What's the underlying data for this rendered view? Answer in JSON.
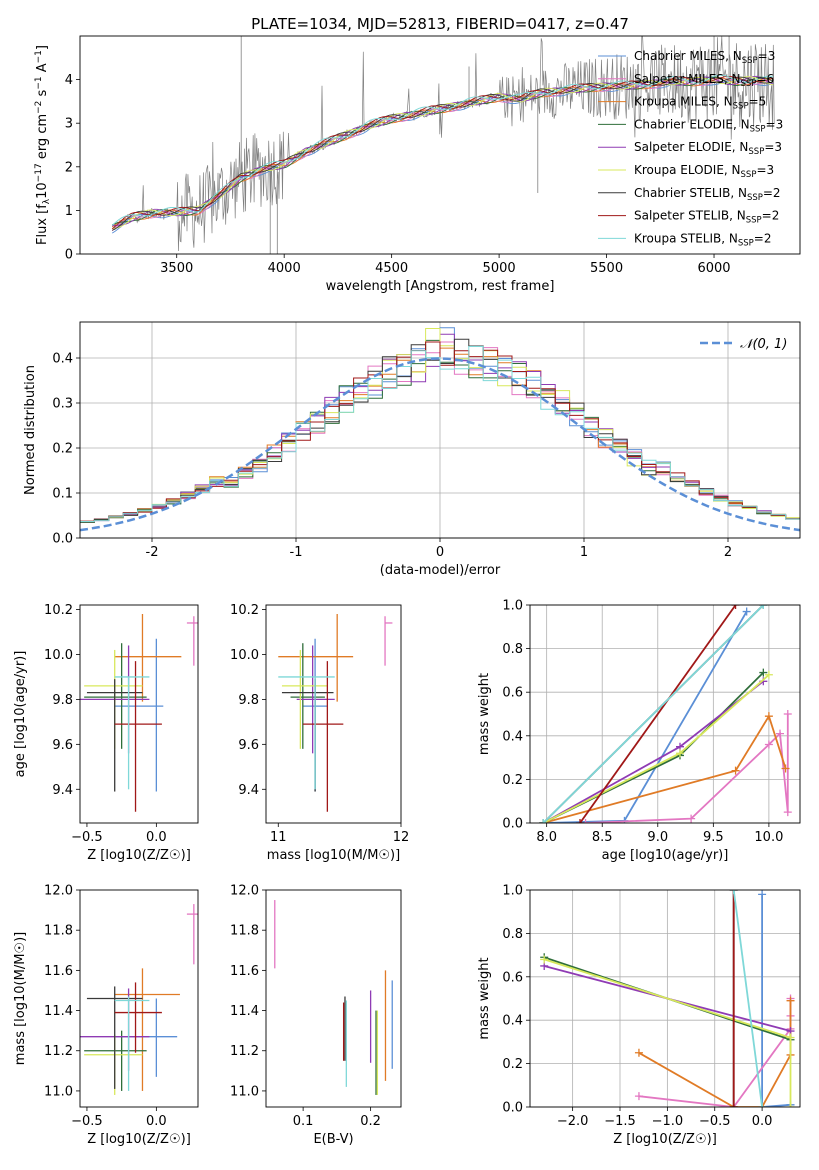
{
  "figure_title": "PLATE=1034, MJD=52813, FIBERID=0417, z=0.47",
  "colors": {
    "chabrier_miles": "#5b8fd6",
    "salpeter_miles": "#e377c2",
    "kroupa_miles": "#e07b26",
    "chabrier_elodie": "#2f6e3a",
    "salpeter_elodie": "#8f3bb4",
    "kroupa_elodie": "#d8e85c",
    "chabrier_stelib": "#3a3a3a",
    "salpeter_stelib": "#a01818",
    "kroupa_stelib": "#7fd8d8",
    "normal_curve": "#5b8fd6",
    "data_gray": "#808080"
  },
  "chart_data": [
    {
      "id": "spectrum",
      "type": "line",
      "title": "PLATE=1034, MJD=52813, FIBERID=0417, z=0.47",
      "xlabel": "wavelength [Angstrom, rest frame]",
      "ylabel_parts": [
        "Flux [f",
        "λ",
        "10",
        "−17",
        " erg cm",
        "−2",
        " s",
        "−1",
        " A",
        "−1",
        "]"
      ],
      "xlim": [
        3050,
        6400
      ],
      "ylim": [
        0,
        5
      ],
      "xticks": [
        3500,
        4000,
        4500,
        5000,
        5500,
        6000
      ],
      "yticks": [
        0,
        1,
        2,
        3,
        4
      ],
      "grid": false,
      "legend_location": "right",
      "continuum": {
        "x": [
          3200,
          3260,
          3300,
          3400,
          3500,
          3600,
          3700,
          3800,
          3900,
          4000,
          4100,
          4200,
          4300,
          4400,
          4500,
          4600,
          4700,
          4800,
          4900,
          5000,
          5100,
          5200,
          5300,
          5400,
          5500,
          5600,
          5700,
          5800,
          5900,
          6000,
          6100,
          6200,
          6280
        ],
        "y": [
          0.6,
          0.75,
          0.85,
          0.95,
          0.95,
          1.0,
          1.35,
          1.75,
          1.95,
          2.05,
          2.35,
          2.55,
          2.75,
          2.95,
          3.1,
          3.2,
          3.3,
          3.4,
          3.5,
          3.6,
          3.55,
          3.7,
          3.75,
          3.8,
          3.85,
          3.85,
          3.9,
          3.95,
          3.95,
          4.0,
          3.95,
          4.0,
          3.95
        ]
      },
      "legend": [
        {
          "label": "Chabrier MILES, N",
          "sub": "SSP",
          "value": "=3"
        },
        {
          "label": "Salpeter MILES, N",
          "sub": "SSP",
          "value": "=6"
        },
        {
          "label": "Kroupa MILES, N",
          "sub": "SSP",
          "value": "=5"
        },
        {
          "label": "Chabrier ELODIE, N",
          "sub": "SSP",
          "value": "=3"
        },
        {
          "label": "Salpeter ELODIE, N",
          "sub": "SSP",
          "value": "=3"
        },
        {
          "label": "Kroupa ELODIE, N",
          "sub": "SSP",
          "value": "=3"
        },
        {
          "label": "Chabrier STELIB, N",
          "sub": "SSP",
          "value": "=2"
        },
        {
          "label": "Salpeter STELIB, N",
          "sub": "SSP",
          "value": "=2"
        },
        {
          "label": "Kroupa STELIB, N",
          "sub": "SSP",
          "value": "=2"
        }
      ]
    },
    {
      "id": "residuals",
      "type": "histogram",
      "xlabel": "(data-model)/error",
      "ylabel": "Normed distribution",
      "xlim": [
        -2.5,
        2.5
      ],
      "ylim": [
        0,
        0.48
      ],
      "xticks": [
        -2,
        -1,
        0,
        1,
        2
      ],
      "yticks": [
        0.0,
        0.1,
        0.2,
        0.3,
        0.4
      ],
      "grid": true,
      "bin_width": 0.1,
      "legend": "𝒩(0, 1)",
      "legend_location": "top-right"
    },
    {
      "id": "age_vs_Z",
      "type": "errorbar",
      "xlabel": "Z [log10(Z/Z☉)]",
      "ylabel": "age  [log10(age/yr)]",
      "xlim": [
        -0.55,
        0.3
      ],
      "ylim": [
        9.25,
        10.22
      ],
      "xticks": [
        -0.5,
        0.0
      ],
      "yticks": [
        9.4,
        9.6,
        9.8,
        10.0,
        10.2
      ],
      "points": [
        {
          "model": "chabrier_miles",
          "x": 0.0,
          "xerr": [
            0.3,
            0.05
          ],
          "y": 9.77,
          "yerr": [
            0.38,
            0.3
          ]
        },
        {
          "model": "salpeter_miles",
          "x": 0.27,
          "xerr": [
            0.05,
            0.03
          ],
          "y": 10.14,
          "yerr": [
            0.19,
            0.03
          ]
        },
        {
          "model": "kroupa_miles",
          "x": -0.1,
          "xerr": [
            0.2,
            0.28
          ],
          "y": 9.99,
          "yerr": [
            0.2,
            0.19
          ]
        },
        {
          "model": "chabrier_elodie",
          "x": -0.25,
          "xerr": [
            0.27,
            0.18
          ],
          "y": 9.81,
          "yerr": [
            0.23,
            0.24
          ]
        },
        {
          "model": "salpeter_elodie",
          "x": -0.2,
          "xerr": [
            0.35,
            0.15
          ],
          "y": 9.8,
          "yerr": [
            0.24,
            0.24
          ]
        },
        {
          "model": "kroupa_elodie",
          "x": -0.3,
          "xerr": [
            0.22,
            0.2
          ],
          "y": 9.86,
          "yerr": [
            0.28,
            0.16
          ]
        },
        {
          "model": "chabrier_stelib",
          "x": -0.3,
          "xerr": [
            0.2,
            0.2
          ],
          "y": 9.83,
          "yerr": [
            0.44,
            0.06
          ]
        },
        {
          "model": "salpeter_stelib",
          "x": -0.15,
          "xerr": [
            0.15,
            0.19
          ],
          "y": 9.69,
          "yerr": [
            0.39,
            0.28
          ]
        },
        {
          "model": "kroupa_stelib",
          "x": -0.2,
          "xerr": [
            0.1,
            0.15
          ],
          "y": 9.9,
          "yerr": [
            0.5,
            0.0
          ]
        }
      ]
    },
    {
      "id": "age_vs_mass",
      "type": "errorbar",
      "xlabel": "mass [log10(M/M☉)]",
      "ylabel": "",
      "xlim": [
        10.9,
        12.0
      ],
      "ylim": [
        9.25,
        10.22
      ],
      "xticks": [
        11,
        12
      ],
      "yticks": [
        9.4,
        9.6,
        9.8,
        10.0,
        10.2
      ],
      "points": [
        {
          "model": "chabrier_miles",
          "x": 11.3,
          "xerr": [
            0.1,
            0.1
          ],
          "y": 9.77,
          "yerr": [
            0.38,
            0.3
          ]
        },
        {
          "model": "salpeter_miles",
          "x": 11.87,
          "xerr": [
            0.0,
            0.06
          ],
          "y": 10.14,
          "yerr": [
            0.19,
            0.03
          ]
        },
        {
          "model": "kroupa_miles",
          "x": 11.48,
          "xerr": [
            0.48,
            0.13
          ],
          "y": 9.99,
          "yerr": [
            0.2,
            0.19
          ]
        },
        {
          "model": "chabrier_elodie",
          "x": 11.2,
          "xerr": [
            0.1,
            0.18
          ],
          "y": 9.81,
          "yerr": [
            0.23,
            0.24
          ]
        },
        {
          "model": "salpeter_elodie",
          "x": 11.28,
          "xerr": [
            0.13,
            0.18
          ],
          "y": 9.8,
          "yerr": [
            0.24,
            0.24
          ]
        },
        {
          "model": "kroupa_elodie",
          "x": 11.18,
          "xerr": [
            0.15,
            0.22
          ],
          "y": 9.86,
          "yerr": [
            0.28,
            0.16
          ]
        },
        {
          "model": "chabrier_stelib",
          "x": 11.3,
          "xerr": [
            0.27,
            0.15
          ],
          "y": 9.83,
          "yerr": [
            0.44,
            0.06
          ]
        },
        {
          "model": "salpeter_stelib",
          "x": 11.4,
          "xerr": [
            0.2,
            0.13
          ],
          "y": 9.69,
          "yerr": [
            0.39,
            0.28
          ]
        },
        {
          "model": "kroupa_stelib",
          "x": 11.3,
          "xerr": [
            0.3,
            0.16
          ],
          "y": 9.9,
          "yerr": [
            0.5,
            0.0
          ]
        }
      ]
    },
    {
      "id": "mass_weight_vs_age",
      "type": "line",
      "xlabel": "age  [log10(age/yr)]",
      "ylabel": "mass weight",
      "xlim": [
        7.85,
        10.28
      ],
      "ylim": [
        0,
        1
      ],
      "xticks": [
        8.0,
        8.5,
        9.0,
        9.5,
        10.0
      ],
      "yticks": [
        0.0,
        0.2,
        0.4,
        0.6,
        0.8,
        1.0
      ],
      "grid": true,
      "series": [
        {
          "model": "chabrier_miles",
          "x": [
            7.97,
            8.7,
            9.8
          ],
          "y": [
            0.0,
            0.01,
            0.97
          ]
        },
        {
          "model": "salpeter_miles",
          "x": [
            8.35,
            9.3,
            10.0,
            10.1,
            10.17,
            10.17
          ],
          "y": [
            0.0,
            0.02,
            0.36,
            0.41,
            0.05,
            0.5
          ]
        },
        {
          "model": "kroupa_miles",
          "x": [
            7.97,
            9.7,
            10.0,
            10.15
          ],
          "y": [
            0.0,
            0.24,
            0.49,
            0.25
          ]
        },
        {
          "model": "chabrier_elodie",
          "x": [
            7.97,
            9.2,
            9.95
          ],
          "y": [
            0.0,
            0.31,
            0.69
          ]
        },
        {
          "model": "salpeter_elodie",
          "x": [
            7.97,
            9.2,
            9.95
          ],
          "y": [
            0.0,
            0.35,
            0.65
          ]
        },
        {
          "model": "kroupa_elodie",
          "x": [
            7.97,
            9.2,
            10.0
          ],
          "y": [
            0.0,
            0.32,
            0.68
          ]
        },
        {
          "model": "chabrier_stelib",
          "x": [
            7.97,
            9.95
          ],
          "y": [
            0.0,
            1.0
          ]
        },
        {
          "model": "salpeter_stelib",
          "x": [
            8.3,
            9.7
          ],
          "y": [
            0.0,
            1.0
          ]
        },
        {
          "model": "kroupa_stelib",
          "x": [
            7.97,
            9.95
          ],
          "y": [
            0.0,
            1.0
          ]
        }
      ]
    },
    {
      "id": "mass_vs_Z",
      "type": "errorbar",
      "xlabel": "Z [log10(Z/Z☉)]",
      "ylabel": "mass [log10(M/M☉)]",
      "xlim": [
        -0.55,
        0.3
      ],
      "ylim": [
        10.92,
        12.0
      ],
      "xticks": [
        -0.5,
        0.0
      ],
      "yticks": [
        11.0,
        11.2,
        11.4,
        11.6,
        11.8,
        12.0
      ],
      "points": [
        {
          "model": "chabrier_miles",
          "x": 0.0,
          "xerr": [
            0.3,
            0.15
          ],
          "y": 11.27,
          "yerr": [
            0.2,
            0.19
          ]
        },
        {
          "model": "salpeter_miles",
          "x": 0.27,
          "xerr": [
            0.05,
            0.03
          ],
          "y": 11.88,
          "yerr": [
            0.25,
            0.05
          ]
        },
        {
          "model": "kroupa_miles",
          "x": -0.1,
          "xerr": [
            0.2,
            0.27
          ],
          "y": 11.48,
          "yerr": [
            0.48,
            0.13
          ]
        },
        {
          "model": "chabrier_elodie",
          "x": -0.25,
          "xerr": [
            0.27,
            0.18
          ],
          "y": 11.2,
          "yerr": [
            0.2,
            0.1
          ]
        },
        {
          "model": "salpeter_elodie",
          "x": -0.2,
          "xerr": [
            0.35,
            0.15
          ],
          "y": 11.27,
          "yerr": [
            0.17,
            0.24
          ]
        },
        {
          "model": "kroupa_elodie",
          "x": -0.3,
          "xerr": [
            0.22,
            0.2
          ],
          "y": 11.18,
          "yerr": [
            0.2,
            0.1
          ]
        },
        {
          "model": "chabrier_stelib",
          "x": -0.3,
          "xerr": [
            0.2,
            0.2
          ],
          "y": 11.46,
          "yerr": [
            0.45,
            0.06
          ]
        },
        {
          "model": "salpeter_stelib",
          "x": -0.15,
          "xerr": [
            0.15,
            0.19
          ],
          "y": 11.39,
          "yerr": [
            0.2,
            0.15
          ]
        },
        {
          "model": "kroupa_stelib",
          "x": -0.2,
          "xerr": [
            0.1,
            0.15
          ],
          "y": 11.45,
          "yerr": [
            0.45,
            0.02
          ]
        }
      ]
    },
    {
      "id": "mass_vs_ebv",
      "type": "errorbar",
      "xlabel": "E(B-V)",
      "ylabel": "",
      "xlim": [
        0.045,
        0.245
      ],
      "ylim": [
        10.92,
        12.0
      ],
      "xticks": [
        0.1,
        0.2
      ],
      "yticks": [
        11.0,
        11.2,
        11.4,
        11.6,
        11.8,
        12.0
      ],
      "points": [
        {
          "model": "chabrier_miles",
          "x": 0.232,
          "y": 11.27,
          "yerr": [
            0.16,
            0.28
          ]
        },
        {
          "model": "salpeter_miles",
          "x": 0.058,
          "y": 11.78,
          "yerr": [
            0.17,
            0.17
          ]
        },
        {
          "model": "kroupa_miles",
          "x": 0.222,
          "y": 11.35,
          "yerr": [
            0.3,
            0.25
          ]
        },
        {
          "model": "chabrier_elodie",
          "x": 0.208,
          "y": 11.18,
          "yerr": [
            0.2,
            0.22
          ]
        },
        {
          "model": "salpeter_elodie",
          "x": 0.2,
          "y": 11.27,
          "yerr": [
            0.13,
            0.23
          ]
        },
        {
          "model": "kroupa_elodie",
          "x": 0.21,
          "y": 11.18,
          "yerr": [
            0.2,
            0.22
          ]
        },
        {
          "model": "chabrier_stelib",
          "x": 0.162,
          "y": 11.3,
          "yerr": [
            0.15,
            0.17
          ]
        },
        {
          "model": "salpeter_stelib",
          "x": 0.16,
          "y": 11.3,
          "yerr": [
            0.15,
            0.14
          ]
        },
        {
          "model": "kroupa_stelib",
          "x": 0.164,
          "y": 11.25,
          "yerr": [
            0.23,
            0.2
          ]
        }
      ]
    },
    {
      "id": "mass_weight_vs_Z",
      "type": "line",
      "xlabel": "Z [log10(Z/Z☉)]",
      "ylabel": "mass weight",
      "xlim": [
        -2.45,
        0.4
      ],
      "ylim": [
        0,
        1
      ],
      "xticks": [
        -2.0,
        -1.5,
        -1.0,
        -0.5,
        0.0
      ],
      "yticks": [
        0.0,
        0.2,
        0.4,
        0.6,
        0.8,
        1.0
      ],
      "grid": true,
      "series": [
        {
          "model": "chabrier_miles",
          "x": [
            0.0,
            0.0,
            0.3
          ],
          "y": [
            0.98,
            0.0,
            0.01
          ]
        },
        {
          "model": "salpeter_miles",
          "x": [
            -1.3,
            -0.3,
            0.3,
            0.3,
            0.3
          ],
          "y": [
            0.05,
            0.0,
            0.36,
            0.42,
            0.5
          ]
        },
        {
          "model": "kroupa_miles",
          "x": [
            -1.3,
            -0.3,
            0.0,
            0.3,
            0.3
          ],
          "y": [
            0.25,
            0.0,
            0.0,
            0.24,
            0.49
          ]
        },
        {
          "model": "chabrier_elodie",
          "x": [
            -2.3,
            0.3
          ],
          "y": [
            0.69,
            0.31
          ]
        },
        {
          "model": "salpeter_elodie",
          "x": [
            -2.3,
            0.3
          ],
          "y": [
            0.65,
            0.35
          ]
        },
        {
          "model": "kroupa_elodie",
          "x": [
            -2.3,
            0.3,
            0.3
          ],
          "y": [
            0.68,
            0.32,
            0.0
          ]
        },
        {
          "model": "chabrier_stelib",
          "x": [
            -0.3,
            -0.3
          ],
          "y": [
            0.0,
            1.0
          ]
        },
        {
          "model": "salpeter_stelib",
          "x": [
            -0.3,
            -0.3
          ],
          "y": [
            0.0,
            1.0
          ]
        },
        {
          "model": "kroupa_stelib",
          "x": [
            -0.3,
            0.0
          ],
          "y": [
            1.0,
            0.0
          ]
        }
      ]
    }
  ]
}
